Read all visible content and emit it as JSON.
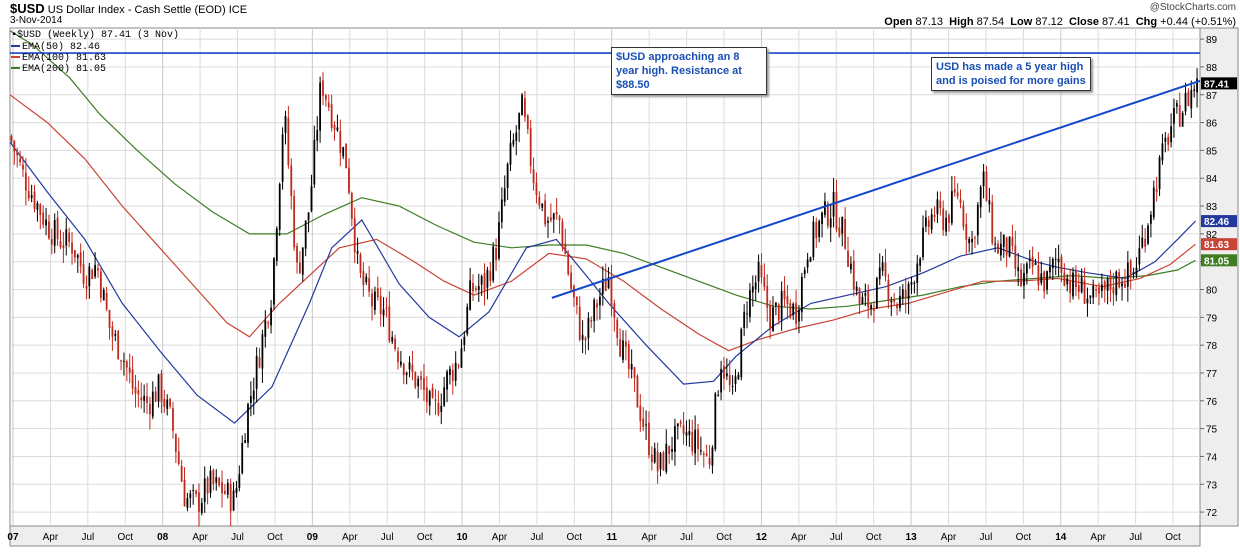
{
  "header": {
    "symbol": "$USD",
    "name": "US Dollar Index - Cash Settle (EOD)",
    "exchange": "ICE",
    "date": "3-Nov-2014",
    "watermark": "@StockCharts.com",
    "open_label": "Open",
    "open": "87.13",
    "high_label": "High",
    "high": "87.54",
    "low_label": "Low",
    "low": "87.12",
    "close_label": "Close",
    "close": "87.41",
    "chg_label": "Chg",
    "chg": "+0.44 (+0.51%)"
  },
  "legend": {
    "price": "$USD (Weekly) 87.41 (3 Nov)",
    "ema50": "EMA(50) 82.46",
    "ema100": "EMA(100) 81.63",
    "ema200": "EMA(200) 81.05"
  },
  "annotations": {
    "resistance_note": "$USD approaching an 8 year high. Resistance at $88.50",
    "high_note": "USD has made a 5 year high and is poised for more gains"
  },
  "colors": {
    "up": "#000000",
    "down": "#c0281c",
    "ema50": "#23399e",
    "ema100": "#c84434",
    "ema200": "#3f7d24",
    "trend": "#1747c9",
    "grid": "#dcdcdc",
    "frame": "#888888",
    "axis_bg": "#e9e9e9",
    "last_label_bg": "#000000"
  },
  "chart_data": {
    "type": "candlestick",
    "title": "$USD US Dollar Index - Cash Settle (EOD) ICE",
    "period": "Weekly",
    "x_tick_labels": [
      "07",
      "Apr",
      "Jul",
      "Oct",
      "08",
      "Apr",
      "Jul",
      "Oct",
      "09",
      "Apr",
      "Jul",
      "Oct",
      "10",
      "Apr",
      "Jul",
      "Oct",
      "11",
      "Apr",
      "Jul",
      "Oct",
      "12",
      "Apr",
      "Jul",
      "Oct",
      "13",
      "Apr",
      "Jul",
      "Oct",
      "14",
      "Apr",
      "Jul",
      "Oct"
    ],
    "x_tick_years": [
      "07",
      "08",
      "09",
      "10",
      "11",
      "12",
      "13",
      "14"
    ],
    "y_ticks": [
      72,
      73,
      74,
      75,
      76,
      77,
      78,
      79,
      80,
      81,
      82,
      83,
      84,
      85,
      86,
      87,
      88,
      89
    ],
    "ylim": [
      71.5,
      89.4
    ],
    "xlim": [
      2007.0,
      2014.95
    ],
    "price_path": [
      [
        2007.0,
        85.5
      ],
      [
        2007.08,
        84.2
      ],
      [
        2007.17,
        83.2
      ],
      [
        2007.25,
        82.3
      ],
      [
        2007.33,
        81.8
      ],
      [
        2007.42,
        81.6
      ],
      [
        2007.5,
        80.5
      ],
      [
        2007.58,
        80.9
      ],
      [
        2007.67,
        78.5
      ],
      [
        2007.75,
        77.7
      ],
      [
        2007.83,
        76.3
      ],
      [
        2007.92,
        75.9
      ],
      [
        2008.0,
        76.5
      ],
      [
        2008.08,
        75.2
      ],
      [
        2008.17,
        72.5
      ],
      [
        2008.25,
        72.3
      ],
      [
        2008.33,
        73.0
      ],
      [
        2008.42,
        72.8
      ],
      [
        2008.5,
        72.4
      ],
      [
        2008.58,
        75.5
      ],
      [
        2008.67,
        77.8
      ],
      [
        2008.75,
        80.0
      ],
      [
        2008.83,
        86.5
      ],
      [
        2008.92,
        80.5
      ],
      [
        2009.0,
        83.0
      ],
      [
        2009.08,
        87.5
      ],
      [
        2009.17,
        86.0
      ],
      [
        2009.25,
        84.5
      ],
      [
        2009.33,
        80.5
      ],
      [
        2009.42,
        79.5
      ],
      [
        2009.5,
        79.2
      ],
      [
        2009.58,
        77.9
      ],
      [
        2009.67,
        77.0
      ],
      [
        2009.75,
        76.5
      ],
      [
        2009.83,
        75.5
      ],
      [
        2009.92,
        76.8
      ],
      [
        2010.0,
        77.5
      ],
      [
        2010.08,
        80.0
      ],
      [
        2010.17,
        80.2
      ],
      [
        2010.25,
        81.5
      ],
      [
        2010.33,
        84.5
      ],
      [
        2010.42,
        86.5
      ],
      [
        2010.5,
        84.0
      ],
      [
        2010.58,
        82.5
      ],
      [
        2010.67,
        82.5
      ],
      [
        2010.75,
        80.0
      ],
      [
        2010.83,
        78.0
      ],
      [
        2010.92,
        79.5
      ],
      [
        2011.0,
        80.5
      ],
      [
        2011.08,
        78.0
      ],
      [
        2011.17,
        76.5
      ],
      [
        2011.25,
        74.8
      ],
      [
        2011.33,
        73.5
      ],
      [
        2011.42,
        74.5
      ],
      [
        2011.5,
        74.8
      ],
      [
        2011.58,
        74.5
      ],
      [
        2011.67,
        73.8
      ],
      [
        2011.75,
        77.5
      ],
      [
        2011.83,
        76.0
      ],
      [
        2011.92,
        79.5
      ],
      [
        2012.0,
        80.5
      ],
      [
        2012.08,
        79.0
      ],
      [
        2012.17,
        79.5
      ],
      [
        2012.25,
        79.2
      ],
      [
        2012.33,
        81.5
      ],
      [
        2012.42,
        82.5
      ],
      [
        2012.5,
        83.0
      ],
      [
        2012.58,
        81.8
      ],
      [
        2012.67,
        79.5
      ],
      [
        2012.75,
        79.5
      ],
      [
        2012.83,
        80.5
      ],
      [
        2012.92,
        79.5
      ],
      [
        2013.0,
        79.8
      ],
      [
        2013.08,
        81.5
      ],
      [
        2013.17,
        82.8
      ],
      [
        2013.25,
        82.5
      ],
      [
        2013.33,
        83.5
      ],
      [
        2013.42,
        81.5
      ],
      [
        2013.5,
        84.0
      ],
      [
        2013.58,
        81.5
      ],
      [
        2013.67,
        81.5
      ],
      [
        2013.75,
        80.2
      ],
      [
        2013.83,
        80.8
      ],
      [
        2013.92,
        80.2
      ],
      [
        2014.0,
        81.2
      ],
      [
        2014.08,
        80.2
      ],
      [
        2014.17,
        80.0
      ],
      [
        2014.25,
        79.5
      ],
      [
        2014.33,
        80.0
      ],
      [
        2014.42,
        80.5
      ],
      [
        2014.5,
        80.5
      ],
      [
        2014.58,
        82.0
      ],
      [
        2014.67,
        84.2
      ],
      [
        2014.75,
        85.8
      ],
      [
        2014.83,
        86.5
      ],
      [
        2014.92,
        87.4
      ]
    ],
    "ema50_path": [
      [
        2007.0,
        85.3
      ],
      [
        2007.25,
        83.5
      ],
      [
        2007.5,
        81.8
      ],
      [
        2007.75,
        79.5
      ],
      [
        2008.0,
        77.8
      ],
      [
        2008.25,
        76.2
      ],
      [
        2008.5,
        75.2
      ],
      [
        2008.75,
        76.5
      ],
      [
        2009.0,
        79.5
      ],
      [
        2009.15,
        81.5
      ],
      [
        2009.35,
        82.5
      ],
      [
        2009.6,
        80.2
      ],
      [
        2009.8,
        79.0
      ],
      [
        2010.0,
        78.3
      ],
      [
        2010.2,
        79.2
      ],
      [
        2010.45,
        81.5
      ],
      [
        2010.65,
        81.8
      ],
      [
        2010.85,
        80.5
      ],
      [
        2011.0,
        79.5
      ],
      [
        2011.25,
        78.0
      ],
      [
        2011.5,
        76.6
      ],
      [
        2011.7,
        76.7
      ],
      [
        2011.85,
        77.6
      ],
      [
        2012.1,
        78.7
      ],
      [
        2012.35,
        79.5
      ],
      [
        2012.6,
        79.8
      ],
      [
        2012.85,
        80.1
      ],
      [
        2013.1,
        80.6
      ],
      [
        2013.35,
        81.2
      ],
      [
        2013.6,
        81.5
      ],
      [
        2013.85,
        81.0
      ],
      [
        2014.0,
        80.8
      ],
      [
        2014.2,
        80.6
      ],
      [
        2014.45,
        80.4
      ],
      [
        2014.65,
        81.0
      ],
      [
        2014.8,
        81.8
      ],
      [
        2014.92,
        82.46
      ]
    ],
    "ema100_path": [
      [
        2007.0,
        87.0
      ],
      [
        2007.25,
        86.0
      ],
      [
        2007.5,
        84.7
      ],
      [
        2007.75,
        83.0
      ],
      [
        2008.0,
        81.5
      ],
      [
        2008.25,
        80.0
      ],
      [
        2008.45,
        78.8
      ],
      [
        2008.6,
        78.3
      ],
      [
        2008.8,
        79.5
      ],
      [
        2009.0,
        80.5
      ],
      [
        2009.2,
        81.5
      ],
      [
        2009.45,
        81.8
      ],
      [
        2009.7,
        81.0
      ],
      [
        2009.9,
        80.3
      ],
      [
        2010.1,
        79.8
      ],
      [
        2010.35,
        80.3
      ],
      [
        2010.6,
        81.3
      ],
      [
        2010.85,
        81.1
      ],
      [
        2011.1,
        80.3
      ],
      [
        2011.35,
        79.3
      ],
      [
        2011.6,
        78.4
      ],
      [
        2011.8,
        77.8
      ],
      [
        2012.0,
        78.2
      ],
      [
        2012.25,
        78.6
      ],
      [
        2012.5,
        78.9
      ],
      [
        2012.75,
        79.3
      ],
      [
        2013.0,
        79.5
      ],
      [
        2013.25,
        79.9
      ],
      [
        2013.5,
        80.3
      ],
      [
        2013.75,
        80.3
      ],
      [
        2014.0,
        80.4
      ],
      [
        2014.3,
        80.1
      ],
      [
        2014.55,
        80.4
      ],
      [
        2014.75,
        80.9
      ],
      [
        2014.92,
        81.63
      ]
    ],
    "ema200_path": [
      [
        2007.0,
        89.3
      ],
      [
        2007.15,
        88.8
      ],
      [
        2007.4,
        87.6
      ],
      [
        2007.6,
        86.3
      ],
      [
        2007.85,
        85.0
      ],
      [
        2008.1,
        83.8
      ],
      [
        2008.35,
        82.8
      ],
      [
        2008.6,
        82.0
      ],
      [
        2008.85,
        82.0
      ],
      [
        2009.1,
        82.7
      ],
      [
        2009.35,
        83.3
      ],
      [
        2009.6,
        83.0
      ],
      [
        2009.85,
        82.3
      ],
      [
        2010.1,
        81.7
      ],
      [
        2010.35,
        81.5
      ],
      [
        2010.6,
        81.6
      ],
      [
        2010.85,
        81.6
      ],
      [
        2011.1,
        81.3
      ],
      [
        2011.35,
        80.8
      ],
      [
        2011.6,
        80.3
      ],
      [
        2011.85,
        79.8
      ],
      [
        2012.1,
        79.4
      ],
      [
        2012.35,
        79.3
      ],
      [
        2012.6,
        79.4
      ],
      [
        2012.85,
        79.6
      ],
      [
        2013.1,
        79.8
      ],
      [
        2013.35,
        80.1
      ],
      [
        2013.6,
        80.3
      ],
      [
        2013.85,
        80.4
      ],
      [
        2014.1,
        80.5
      ],
      [
        2014.35,
        80.4
      ],
      [
        2014.6,
        80.5
      ],
      [
        2014.8,
        80.7
      ],
      [
        2014.92,
        81.05
      ]
    ],
    "resistance_level": 88.5,
    "trendline": [
      [
        2010.62,
        79.7
      ],
      [
        2014.95,
        87.5
      ]
    ],
    "last_price": 87.41,
    "axis_labels": [
      "87.41",
      "82.46",
      "81.63",
      "81.05"
    ]
  }
}
